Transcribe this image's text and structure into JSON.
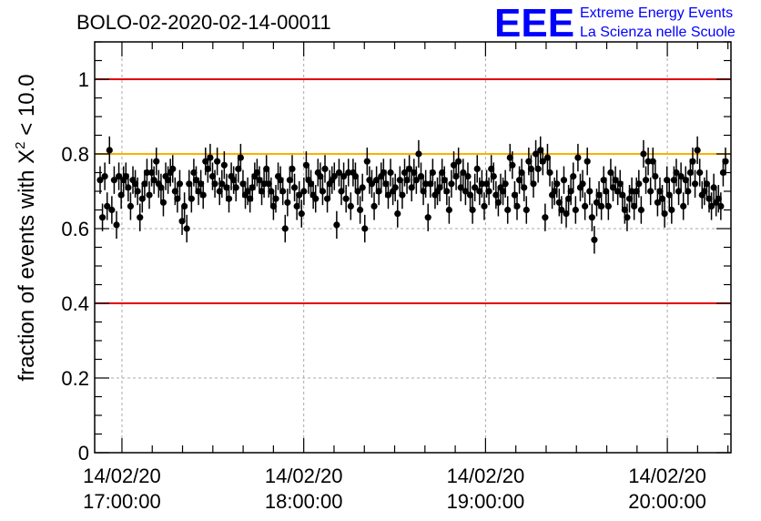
{
  "header": {
    "title": "BOLO-02-2020-02-14-00011",
    "logo_text": "EEE",
    "logo_line1": "Extreme Energy Events",
    "logo_line2": "La Scienza nelle Scuole"
  },
  "colors": {
    "logo": "#0000ff",
    "limit_line": "#e00000",
    "reference_line": "#ffb000",
    "points": "#000000",
    "grid": "#aaaaaa"
  },
  "chart_data": {
    "type": "scatter",
    "title": "BOLO-02-2020-02-14-00011",
    "xlabel": "",
    "ylabel_prefix": "fraction of events with ",
    "ylabel_symbol": "X",
    "ylabel_exponent": "2",
    "ylabel_suffix": " < 10.0",
    "ylim": [
      0,
      1.1
    ],
    "xlim_hours": [
      16.85,
      20.35
    ],
    "grid": true,
    "y_ticks": [
      {
        "value": 0,
        "label": "0"
      },
      {
        "value": 0.2,
        "label": "0.2"
      },
      {
        "value": 0.4,
        "label": "0.4"
      },
      {
        "value": 0.6,
        "label": "0.6"
      },
      {
        "value": 0.8,
        "label": "0.8"
      },
      {
        "value": 1,
        "label": "1"
      }
    ],
    "x_ticks": [
      {
        "hour": 17,
        "date": "14/02/20",
        "time": "17:00:00"
      },
      {
        "hour": 18,
        "date": "14/02/20",
        "time": "18:00:00"
      },
      {
        "hour": 19,
        "date": "14/02/20",
        "time": "19:00:00"
      },
      {
        "hour": 20,
        "date": "14/02/20",
        "time": "20:00:00"
      }
    ],
    "horizontal_lines": [
      {
        "y": 1.0,
        "color": "#e00000"
      },
      {
        "y": 0.8,
        "color": "#ffb000"
      },
      {
        "y": 0.4,
        "color": "#e00000"
      }
    ],
    "error": 0.037,
    "y": [
      0.73,
      0.63,
      0.74,
      0.66,
      0.81,
      0.65,
      0.73,
      0.61,
      0.74,
      0.69,
      0.73,
      0.74,
      0.71,
      0.66,
      0.73,
      0.72,
      0.7,
      0.63,
      0.68,
      0.72,
      0.75,
      0.69,
      0.75,
      0.73,
      0.78,
      0.72,
      0.71,
      0.67,
      0.74,
      0.73,
      0.75,
      0.76,
      0.7,
      0.68,
      0.72,
      0.62,
      0.66,
      0.6,
      0.72,
      0.68,
      0.75,
      0.73,
      0.7,
      0.72,
      0.69,
      0.78,
      0.76,
      0.79,
      0.74,
      0.72,
      0.78,
      0.7,
      0.72,
      0.77,
      0.71,
      0.68,
      0.74,
      0.73,
      0.71,
      0.76,
      0.79,
      0.72,
      0.69,
      0.7,
      0.68,
      0.71,
      0.74,
      0.75,
      0.73,
      0.7,
      0.72,
      0.76,
      0.72,
      0.7,
      0.66,
      0.68,
      0.74,
      0.73,
      0.7,
      0.6,
      0.67,
      0.73,
      0.76,
      0.71,
      0.66,
      0.69,
      0.64,
      0.7,
      0.77,
      0.73,
      0.72,
      0.69,
      0.68,
      0.75,
      0.74,
      0.7,
      0.76,
      0.68,
      0.72,
      0.73,
      0.74,
      0.61,
      0.75,
      0.7,
      0.74,
      0.68,
      0.75,
      0.66,
      0.75,
      0.74,
      0.7,
      0.65,
      0.71,
      0.6,
      0.78,
      0.73,
      0.72,
      0.66,
      0.73,
      0.7,
      0.74,
      0.75,
      0.72,
      0.69,
      0.75,
      0.7,
      0.71,
      0.64,
      0.73,
      0.69,
      0.75,
      0.73,
      0.76,
      0.71,
      0.75,
      0.73,
      0.8,
      0.74,
      0.7,
      0.72,
      0.63,
      0.72,
      0.75,
      0.69,
      0.7,
      0.71,
      0.75,
      0.73,
      0.7,
      0.65,
      0.72,
      0.77,
      0.74,
      0.78,
      0.71,
      0.75,
      0.7,
      0.74,
      0.69,
      0.65,
      0.71,
      0.76,
      0.7,
      0.72,
      0.66,
      0.72,
      0.7,
      0.76,
      0.74,
      0.69,
      0.67,
      0.71,
      0.7,
      0.72,
      0.65,
      0.79,
      0.77,
      0.69,
      0.66,
      0.73,
      0.75,
      0.71,
      0.65,
      0.78,
      0.76,
      0.72,
      0.8,
      0.76,
      0.81,
      0.78,
      0.63,
      0.79,
      0.75,
      0.69,
      0.7,
      0.72,
      0.67,
      0.65,
      0.73,
      0.64,
      0.68,
      0.7,
      0.74,
      0.65,
      0.79,
      0.71,
      0.72,
      0.66,
      0.78,
      0.7,
      0.63,
      0.57,
      0.67,
      0.69,
      0.66,
      0.73,
      0.7,
      0.66,
      0.75,
      0.71,
      0.73,
      0.7,
      0.72,
      0.69,
      0.65,
      0.63,
      0.68,
      0.7,
      0.66,
      0.7,
      0.72,
      0.65,
      0.8,
      0.73,
      0.78,
      0.7,
      0.78,
      0.74,
      0.67,
      0.7,
      0.68,
      0.64,
      0.73,
      0.69,
      0.65,
      0.73,
      0.75,
      0.7,
      0.74,
      0.66,
      0.73,
      0.7,
      0.75,
      0.78,
      0.72,
      0.81,
      0.75,
      0.69,
      0.7,
      0.72,
      0.68,
      0.66,
      0.71,
      0.67,
      0.68,
      0.66,
      0.75,
      0.78
    ]
  }
}
